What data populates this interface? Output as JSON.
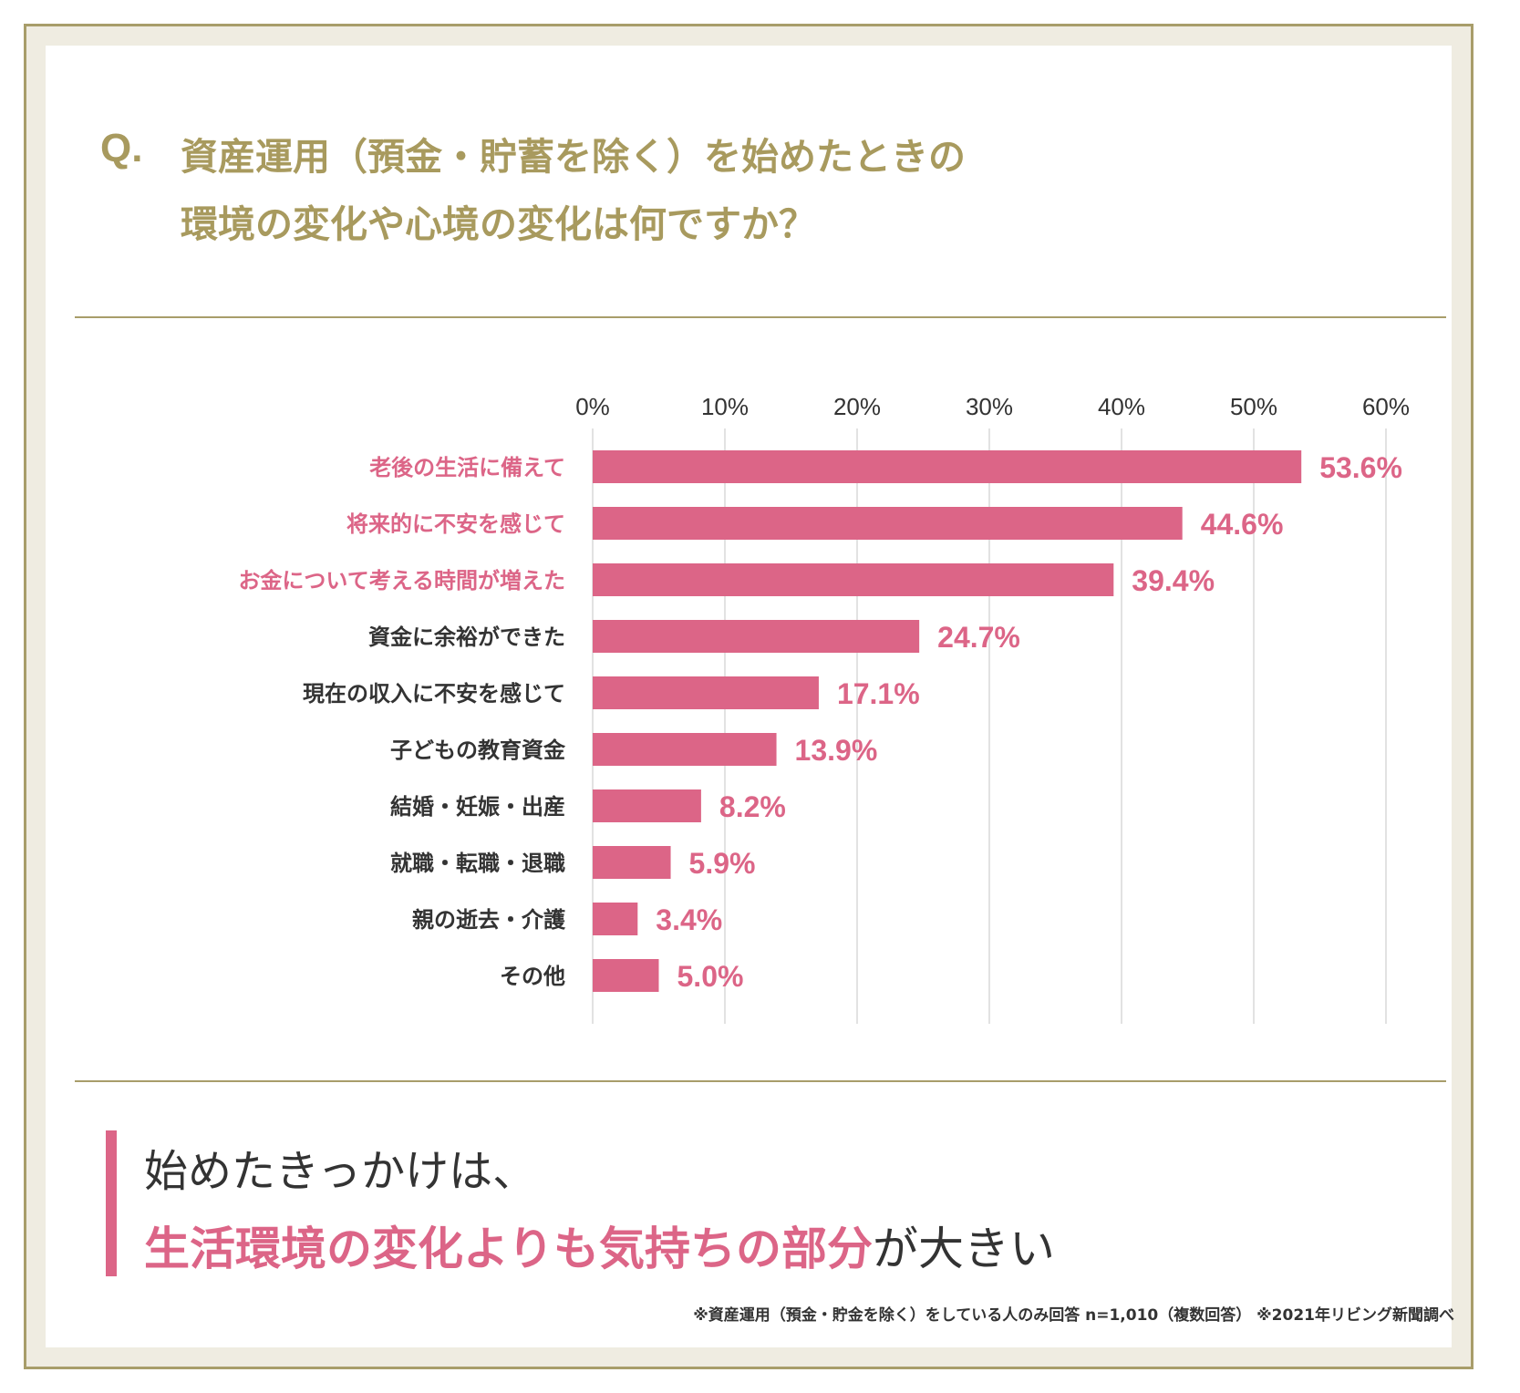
{
  "question": {
    "mark": "Q.",
    "line1": "資産運用（預金・貯蓄を除く）を始めたときの",
    "line2": "環境の変化や心境の変化は何ですか？"
  },
  "chart_data": {
    "type": "bar",
    "orientation": "horizontal",
    "xlim": [
      0,
      60
    ],
    "ticks": [
      "0%",
      "10%",
      "20%",
      "30%",
      "40%",
      "50%",
      "60%"
    ],
    "tick_values": [
      0,
      10,
      20,
      30,
      40,
      50,
      60
    ],
    "grid": true,
    "categories": [
      "老後の生活に備えて",
      "将来的に不安を感じて",
      "お金について考える時間が増えた",
      "資金に余裕ができた",
      "現在の収入に不安を感じて",
      "子どもの教育資金",
      "結婚・妊娠・出産",
      "就職・転職・退職",
      "親の逝去・介護",
      "その他"
    ],
    "values": [
      53.6,
      44.6,
      39.4,
      24.7,
      17.1,
      13.9,
      8.2,
      5.9,
      3.4,
      5.0
    ],
    "value_labels": [
      "53.6%",
      "44.6%",
      "39.4%",
      "24.7%",
      "17.1%",
      "13.9%",
      "8.2%",
      "5.9%",
      "3.4%",
      "5.0%"
    ],
    "highlighted": [
      true,
      true,
      true,
      false,
      false,
      false,
      false,
      false,
      false,
      false
    ]
  },
  "conclusion": {
    "line1": "始めたきっかけは、",
    "line2_highlight": "生活環境の変化よりも気持ちの部分",
    "line2_rest": "が大きい"
  },
  "footnote": "※資産運用（預金・貯金を除く）をしている人のみ回答 n=1,010（複数回答） ※2021年リビング新聞調べ",
  "colors": {
    "gold": "#a89a5e",
    "pink": "#dc6587",
    "text": "#333333",
    "grid": "#d9d9d9",
    "frame_bg": "#efece1"
  }
}
